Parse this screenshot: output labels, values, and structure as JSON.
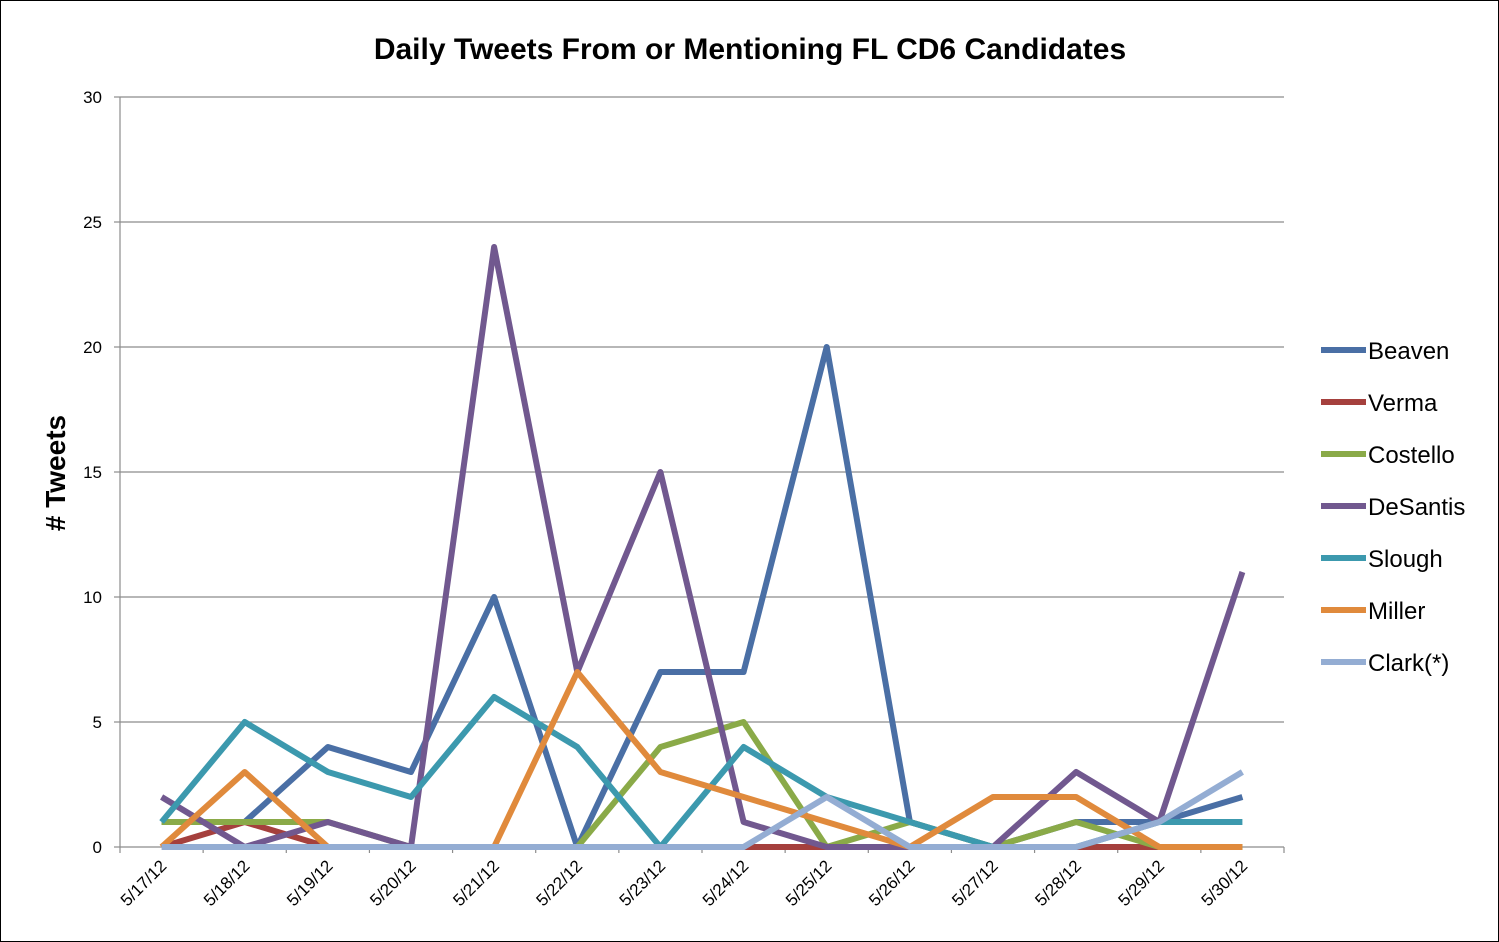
{
  "chart_data": {
    "type": "line",
    "title": "Daily Tweets From or Mentioning FL CD6 Candidates",
    "xlabel": "",
    "ylabel": "# Tweets",
    "ylim": [
      0,
      30
    ],
    "yticks": [
      0,
      5,
      10,
      15,
      20,
      25,
      30
    ],
    "categories": [
      "5/17/12",
      "5/18/12",
      "5/19/12",
      "5/20/12",
      "5/21/12",
      "5/22/12",
      "5/23/12",
      "5/24/12",
      "5/25/12",
      "5/26/12",
      "5/27/12",
      "5/28/12",
      "5/29/12",
      "5/30/12"
    ],
    "grid": true,
    "legend": "right",
    "series": [
      {
        "name": "Beaven",
        "color": "#4A6FA5",
        "values": [
          1,
          1,
          4,
          3,
          10,
          0,
          7,
          7,
          20,
          1,
          0,
          1,
          1,
          2
        ]
      },
      {
        "name": "Verma",
        "color": "#A5403D",
        "values": [
          0,
          1,
          0,
          0,
          0,
          0,
          0,
          0,
          0,
          0,
          0,
          0,
          0,
          0
        ]
      },
      {
        "name": "Costello",
        "color": "#8AAA48",
        "values": [
          1,
          1,
          1,
          0,
          0,
          0,
          4,
          5,
          0,
          1,
          0,
          1,
          0,
          0
        ]
      },
      {
        "name": "DeSantis",
        "color": "#71588F",
        "values": [
          2,
          0,
          1,
          0,
          24,
          7,
          15,
          1,
          0,
          0,
          0,
          3,
          1,
          11
        ]
      },
      {
        "name": "Slough",
        "color": "#3C99AE",
        "values": [
          1,
          5,
          3,
          2,
          6,
          4,
          0,
          4,
          2,
          1,
          0,
          0,
          1,
          1
        ]
      },
      {
        "name": "Miller",
        "color": "#E08A3C",
        "values": [
          0,
          3,
          0,
          0,
          0,
          7,
          3,
          2,
          1,
          0,
          2,
          2,
          0,
          0
        ]
      },
      {
        "name": "Clark(*)",
        "color": "#94ADD3",
        "values": [
          0,
          0,
          0,
          0,
          0,
          0,
          0,
          0,
          2,
          0,
          0,
          0,
          1,
          3
        ]
      }
    ]
  }
}
